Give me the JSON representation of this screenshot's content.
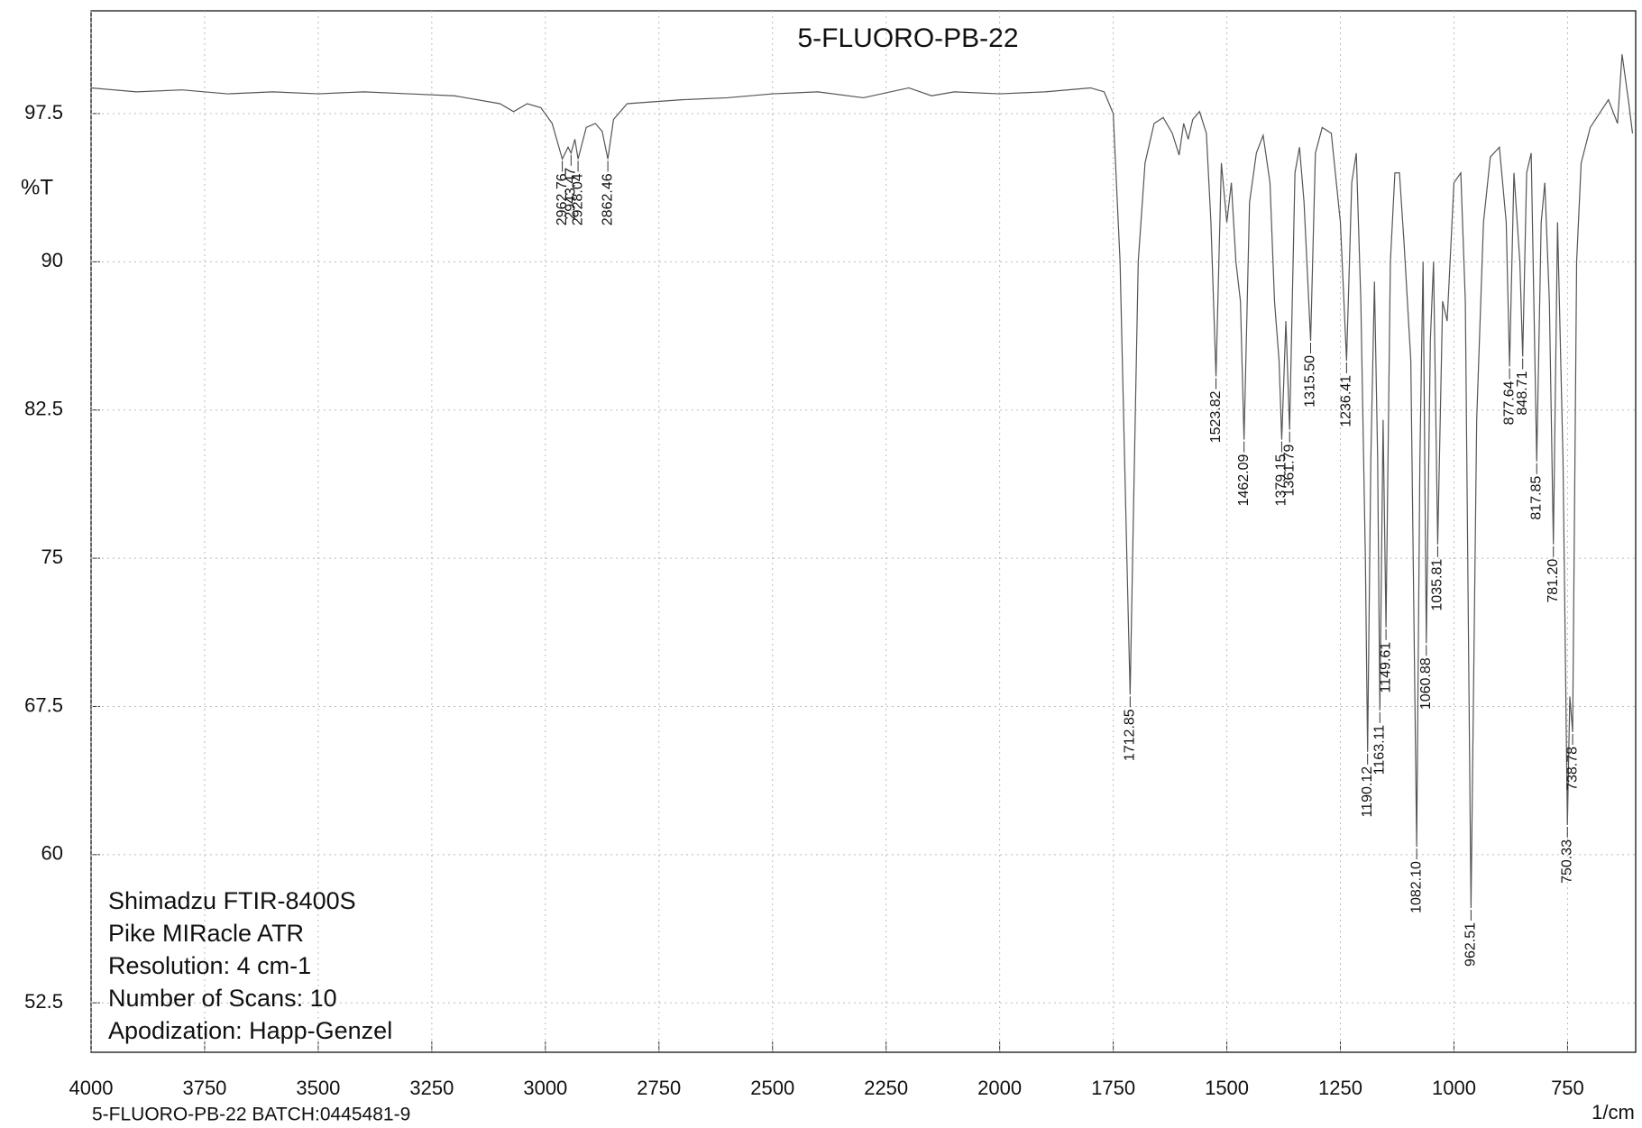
{
  "chart_data": {
    "type": "line",
    "title": "5-FLUORO-PB-22",
    "y_label": "%T",
    "x_label": "1/cm",
    "footer": "5-FLUORO-PB-22 BATCH:0445481-9",
    "notes": [
      "Shimadzu FTIR-8400S",
      "Pike MIRacle ATR",
      "Resolution: 4 cm-1",
      "Number of Scans: 10",
      "Apodization: Happ-Genzel"
    ],
    "color": "#555555",
    "grid": true,
    "xlim": [
      4000,
      600
    ],
    "ylim": [
      50,
      102.7
    ],
    "xticks": [
      4000,
      3750,
      3500,
      3250,
      3000,
      2750,
      2500,
      2250,
      2000,
      1750,
      1500,
      1250,
      1000,
      750
    ],
    "yticks": [
      52.5,
      60,
      67.5,
      75,
      82.5,
      90,
      97.5
    ],
    "x": [
      4000,
      3900,
      3800,
      3700,
      3600,
      3500,
      3400,
      3300,
      3200,
      3100,
      3070,
      3040,
      3010,
      2985,
      2962.76,
      2950,
      2943.47,
      2935,
      2928.04,
      2910,
      2890,
      2875,
      2862.46,
      2850,
      2820,
      2700,
      2600,
      2500,
      2400,
      2300,
      2200,
      2150,
      2100,
      2000,
      1900,
      1800,
      1770,
      1750,
      1735,
      1720,
      1712.85,
      1705,
      1695,
      1680,
      1660,
      1640,
      1620,
      1605,
      1595,
      1585,
      1575,
      1560,
      1545,
      1535,
      1523.82,
      1512,
      1500,
      1490,
      1480,
      1470,
      1462.09,
      1450,
      1435,
      1420,
      1405,
      1395,
      1385,
      1379.15,
      1370,
      1361.79,
      1350,
      1340,
      1330,
      1315.5,
      1305,
      1290,
      1270,
      1250,
      1236.41,
      1225,
      1215,
      1205,
      1195,
      1190.12,
      1183,
      1175,
      1168,
      1163.11,
      1156,
      1149.61,
      1140,
      1130,
      1120,
      1110,
      1095,
      1082.1,
      1075,
      1068,
      1060.88,
      1052,
      1045,
      1035.81,
      1025,
      1015,
      1000,
      985,
      975,
      962.51,
      950,
      935,
      920,
      900,
      885,
      877.64,
      868,
      855,
      848.71,
      840,
      830,
      817.85,
      808,
      800,
      790,
      781.2,
      772,
      760,
      750.33,
      745,
      738.78,
      730,
      720,
      700,
      680,
      660,
      640,
      630,
      615,
      607
    ],
    "values": [
      98.8,
      98.6,
      98.7,
      98.5,
      98.6,
      98.5,
      98.6,
      98.5,
      98.4,
      98.0,
      97.6,
      98.0,
      97.8,
      97.0,
      95.2,
      95.8,
      95.5,
      96.2,
      95.2,
      96.8,
      97.0,
      96.6,
      95.2,
      97.2,
      98.0,
      98.2,
      98.3,
      98.5,
      98.6,
      98.3,
      98.8,
      98.4,
      98.6,
      98.5,
      98.6,
      98.8,
      98.6,
      97.5,
      90,
      75,
      68.1,
      78,
      90,
      95,
      97.0,
      97.3,
      96.5,
      95.4,
      97,
      96.2,
      97.2,
      97.6,
      96.5,
      92,
      84.2,
      95,
      92,
      94,
      90,
      88,
      81.0,
      93,
      95.5,
      96.4,
      94,
      88,
      85,
      81.0,
      87,
      81.5,
      94.5,
      95.8,
      93,
      86.0,
      95.5,
      96.8,
      96.5,
      92,
      85.0,
      94,
      95.5,
      88,
      75,
      65.2,
      80,
      89,
      80,
      67.3,
      82,
      71.5,
      90,
      94.5,
      94.5,
      91,
      85,
      60.4,
      80,
      90,
      70.7,
      86,
      90,
      75.7,
      88,
      87,
      94,
      94.5,
      88,
      57.3,
      82,
      92,
      95.3,
      95.8,
      92,
      84.7,
      94.5,
      90,
      85.2,
      94.5,
      95.5,
      79.9,
      92,
      94,
      88,
      75.7,
      92,
      80,
      61.5,
      68,
      66.2,
      90,
      95,
      96.8,
      97.5,
      98.2,
      97.0,
      100.5,
      98,
      96.5
    ],
    "peaks": {
      "x": [
        2962.76,
        2943.47,
        2928.04,
        2862.46,
        1712.85,
        1523.82,
        1462.09,
        1379.15,
        1361.79,
        1315.5,
        1236.41,
        1190.12,
        1163.11,
        1149.61,
        1082.1,
        1060.88,
        1035.81,
        962.51,
        877.64,
        848.71,
        817.85,
        781.2,
        750.33,
        738.78
      ],
      "values": [
        95.2,
        95.5,
        95.2,
        95.2,
        68.1,
        84.2,
        81.0,
        81.0,
        81.5,
        86.0,
        85.0,
        65.2,
        67.3,
        71.5,
        60.4,
        70.7,
        75.7,
        57.3,
        84.7,
        85.2,
        79.9,
        75.7,
        61.5,
        66.2
      ],
      "labels": [
        "2962.76",
        "2943.47",
        "2928.04",
        "2862.46",
        "1712.85",
        "1523.82",
        "1462.09",
        "1379.15",
        "1361.79",
        "1315.50",
        "1236.41",
        "1190.12",
        "1163.11",
        "1149.61",
        "1082.10",
        "1060.88",
        "1035.81",
        "962.51",
        "877.64",
        "848.71",
        "817.85",
        "781.20",
        "750.33",
        "738.78"
      ]
    }
  }
}
